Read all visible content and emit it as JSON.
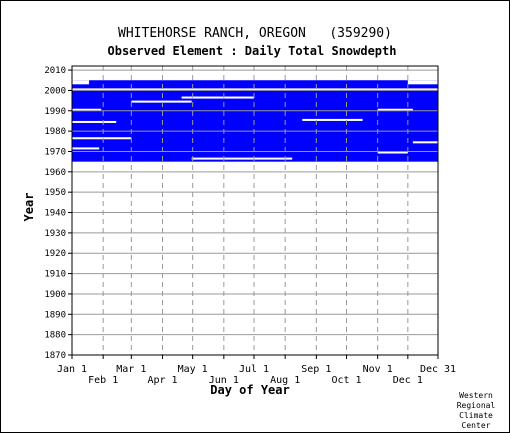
{
  "chart_data": {
    "type": "heatmap",
    "title": "WHITEHORSE RANCH, OREGON   (359290)",
    "subtitle": "Observed Element : Daily Total Snowdepth",
    "xlabel": "Day of Year",
    "ylabel": "Year",
    "credit": [
      "Western",
      "Regional",
      "Climate",
      "Center"
    ],
    "x_tick_labels_top_row": [
      "Jan 1",
      "Mar 1",
      "May 1",
      "Jul 1",
      "Sep 1",
      "Nov 1",
      "Dec 31"
    ],
    "x_tick_days_top_row": [
      1,
      60,
      121,
      182,
      244,
      305,
      365
    ],
    "x_tick_labels_bottom_row": [
      "Feb 1",
      "Apr 1",
      "Jun 1",
      "Aug 1",
      "Oct 1",
      "Dec 1"
    ],
    "x_tick_days_bottom_row": [
      32,
      91,
      152,
      213,
      274,
      335
    ],
    "xlim": [
      1,
      365
    ],
    "ylim": [
      1870,
      2012
    ],
    "y_ticks": [
      1870,
      1880,
      1890,
      1900,
      1910,
      1920,
      1930,
      1940,
      1950,
      1960,
      1970,
      1980,
      1990,
      2000,
      2010
    ],
    "grid": true,
    "data_color": "#0000ff",
    "coverage_description": "Daily observations mostly present from 1965 through 2004, with scattered gaps",
    "observed_spans": [
      {
        "year_start": 1965,
        "year_end": 2004,
        "day_start": 1,
        "day_end": 365
      }
    ],
    "missing_spans": [
      {
        "year_start": 2000,
        "year_end": 2001,
        "day_start": 1,
        "day_end": 365
      },
      {
        "year_start": 2003,
        "year_end": 2005,
        "day_start": 1,
        "day_end": 18
      },
      {
        "year_start": 2003,
        "year_end": 2005,
        "day_start": 335,
        "day_end": 365
      },
      {
        "year_start": 1996,
        "year_end": 1997,
        "day_start": 110,
        "day_end": 182
      },
      {
        "year_start": 1985,
        "year_end": 1986,
        "day_start": 230,
        "day_end": 290
      },
      {
        "year_start": 1976,
        "year_end": 1977,
        "day_start": 1,
        "day_end": 60
      },
      {
        "year_start": 1971,
        "year_end": 1972,
        "day_start": 1,
        "day_end": 28
      },
      {
        "year_start": 1966,
        "year_end": 1967,
        "day_start": 120,
        "day_end": 220
      },
      {
        "year_start": 1969,
        "year_end": 1970,
        "day_start": 305,
        "day_end": 335
      },
      {
        "year_start": 1990,
        "year_end": 1991,
        "day_start": 1,
        "day_end": 30
      },
      {
        "year_start": 1990,
        "year_end": 1991,
        "day_start": 305,
        "day_end": 340
      },
      {
        "year_start": 1984,
        "year_end": 1985,
        "day_start": 1,
        "day_end": 45
      },
      {
        "year_start": 1994,
        "year_end": 1995,
        "day_start": 60,
        "day_end": 120
      },
      {
        "year_start": 1974,
        "year_end": 1975,
        "day_start": 340,
        "day_end": 365
      }
    ]
  }
}
